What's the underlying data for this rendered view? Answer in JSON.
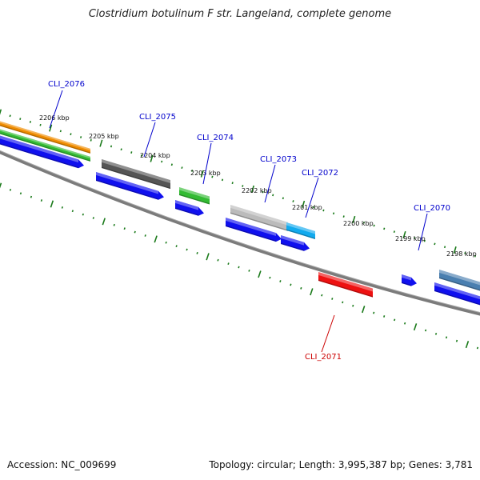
{
  "title": "Clostridium botulinum F str. Langeland, complete genome",
  "footer": {
    "accession": "Accession: NC_009699",
    "topology": "Topology: circular; Length: 3,995,387 bp; Genes: 3,781"
  },
  "ruler_labels": [
    "2206 kbp",
    "2205 kbp",
    "2204 kbp",
    "2203 kbp",
    "2202 kbp",
    "2201 kbp",
    "2200 kbp",
    "2199 kbp",
    "2198 kbp"
  ],
  "genes": [
    {
      "name": "CLI_2076",
      "color": "#0000cc"
    },
    {
      "name": "CLI_2075",
      "color": "#0000cc"
    },
    {
      "name": "CLI_2074",
      "color": "#0000cc"
    },
    {
      "name": "CLI_2073",
      "color": "#0000cc"
    },
    {
      "name": "CLI_2072",
      "color": "#0000cc"
    },
    {
      "name": "CLI_2071",
      "color": "#cc0000"
    },
    {
      "name": "CLI_2070",
      "color": "#0000cc"
    }
  ],
  "colors": {
    "backbone": "#808080",
    "tick": "#1a7a1a",
    "cds": "#1010ee",
    "orange": "#f08c00",
    "green": "#33bb33",
    "dark_gray": "#555555",
    "light_gray": "#bbbbbb",
    "cyan": "#11aaee",
    "red": "#ee1111",
    "steel_blue": "#4a7fb0"
  }
}
